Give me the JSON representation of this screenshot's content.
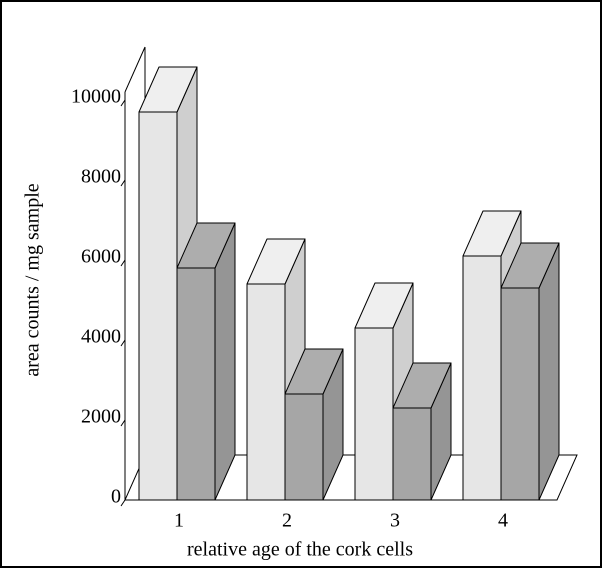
{
  "chart_data": {
    "type": "bar3d",
    "x_label": "relative age of the cork cells",
    "y_label": "area counts / mg sample",
    "categories": [
      "1",
      "2",
      "3",
      "4"
    ],
    "series": [
      {
        "color": "#e6e6e6",
        "values": [
          9700,
          5400,
          4300,
          6100
        ]
      },
      {
        "color": "#a6a6a6",
        "values": [
          5800,
          2650,
          2300,
          5300
        ]
      }
    ],
    "ylim": [
      0,
      10200
    ],
    "yticks": [
      0,
      2000,
      4000,
      6000,
      8000,
      10000
    ]
  }
}
